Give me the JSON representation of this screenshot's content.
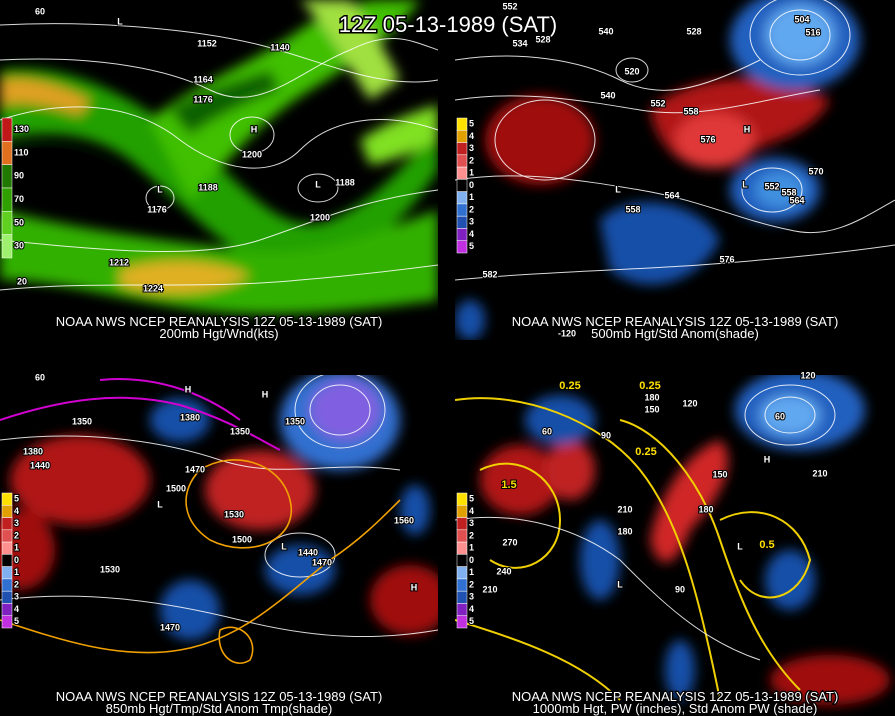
{
  "header": {
    "title": "12Z 05-13-1989 (SAT)"
  },
  "panels": [
    {
      "caption": "NOAA NWS NCEP REANALYSIS 12Z 05-13-1989 (SAT)",
      "subtitle": "200mb Hgt/Wnd(kts)",
      "legend": [
        "130",
        "110",
        "90",
        "70",
        "50",
        "30"
      ],
      "labels": [
        "1152",
        "1140",
        "1164",
        "1176",
        "1200",
        "1188",
        "1188",
        "1176",
        "1200",
        "1212",
        "1224",
        "H",
        "L",
        "L",
        "L",
        "20",
        "60"
      ]
    },
    {
      "caption": "NOAA NWS NCEP REANALYSIS 12Z 05-13-1989 (SAT)",
      "subtitle": "500mb Hgt/Std Anom(shade)",
      "legend": [
        "5",
        "4",
        "3",
        "2",
        "1",
        "0",
        "1",
        "2",
        "3",
        "4",
        "5"
      ],
      "labels": [
        "552",
        "534",
        "528",
        "540",
        "528",
        "504",
        "516",
        "520",
        "540",
        "552",
        "558",
        "576",
        "564",
        "558",
        "552",
        "558",
        "564",
        "570",
        "576",
        "582",
        "H",
        "L",
        "L",
        "-120"
      ]
    },
    {
      "caption": "NOAA NWS NCEP REANALYSIS 12Z 05-13-1989 (SAT)",
      "subtitle": "850mb Hgt/Tmp/Std Anom Tmp(shade)",
      "legend": [
        "5",
        "4",
        "3",
        "2",
        "1",
        "0",
        "1",
        "2",
        "3",
        "4",
        "5"
      ],
      "labels": [
        "1350",
        "1380",
        "1350",
        "1380",
        "1440",
        "1470",
        "1500",
        "1530",
        "1500",
        "1440",
        "1470",
        "1560",
        "1530",
        "1470",
        "1350",
        "H",
        "H",
        "L",
        "L",
        "H",
        "60"
      ]
    },
    {
      "caption": "NOAA NWS NCEP REANALYSIS 12Z 05-13-1989 (SAT)",
      "subtitle": "1000mb Hgt, PW (inches), Std Anom PW (shade)",
      "legend": [
        "5",
        "4",
        "3",
        "2",
        "1",
        "0",
        "1",
        "2",
        "3",
        "4",
        "5"
      ],
      "labels": [
        "0.25",
        "0.25",
        "180",
        "150",
        "120",
        "60",
        "90",
        "0.25",
        "1.5",
        "210",
        "180",
        "150",
        "180",
        "0.5",
        "270",
        "240",
        "210",
        "90",
        "210",
        "60",
        "120",
        "H",
        "L",
        "L"
      ]
    }
  ]
}
